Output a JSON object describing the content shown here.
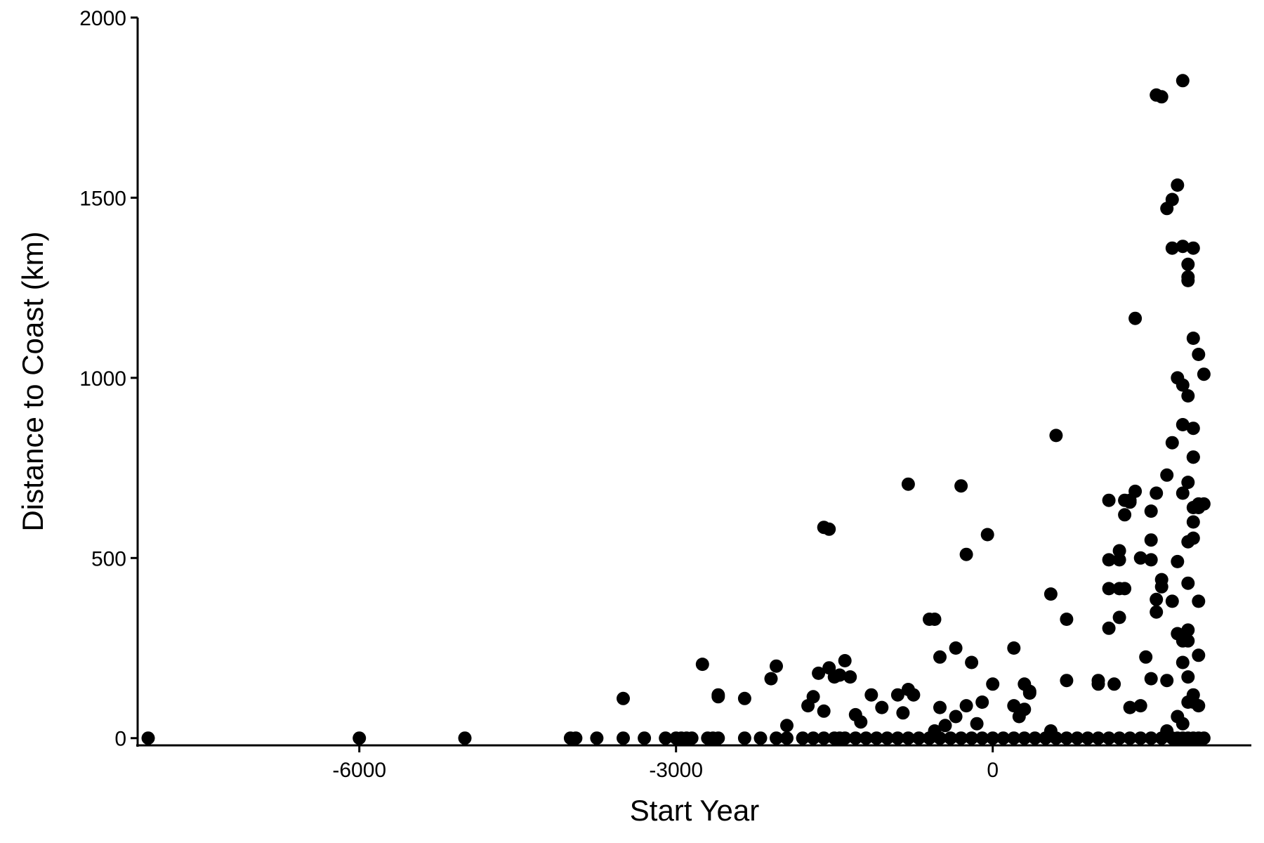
{
  "chart_data": {
    "type": "scatter",
    "title": "",
    "xlabel": "Start Year",
    "ylabel": "Distance to Coast (km)",
    "xlim": [
      -8100,
      2450
    ],
    "ylim": [
      -20,
      2000
    ],
    "x_ticks": [
      -6000,
      -3000,
      0
    ],
    "x_tick_labels": [
      "-6000",
      "-3000",
      "0"
    ],
    "y_ticks": [
      0,
      500,
      1000,
      1500,
      2000
    ],
    "y_tick_labels": [
      "0",
      "500",
      "1000",
      "1500",
      "2000"
    ],
    "grid": false,
    "legend": "none",
    "colors": {
      "point": "#000000",
      "axis": "#000000",
      "background": "#ffffff"
    },
    "series": [
      {
        "name": "points",
        "x": [
          -8000,
          -6000,
          -5000,
          -4000,
          -3950,
          -3750,
          -3500,
          -3300,
          -3100,
          -3000,
          -2950,
          -2900,
          -2850,
          -2700,
          -2650,
          -2600,
          -2350,
          -2200,
          -2050,
          -1950,
          -1800,
          -1700,
          -1600,
          -1500,
          -1450,
          -1400,
          -1300,
          -1200,
          -1100,
          -1000,
          -900,
          -800,
          -700,
          -600,
          -500,
          -400,
          -300,
          -200,
          -100,
          0,
          100,
          200,
          300,
          400,
          500,
          600,
          700,
          800,
          900,
          1000,
          1100,
          1200,
          1300,
          1400,
          1500,
          1600,
          1700,
          1750,
          1800,
          1850,
          1900,
          1950,
          2000,
          -2750,
          -3500,
          -2600,
          -2600,
          -2350,
          -2100,
          -2050,
          -1950,
          -1750,
          -1700,
          -1650,
          -1600,
          -1550,
          -1500,
          -1450,
          -1400,
          -1350,
          -1300,
          -1250,
          -1150,
          -1050,
          -900,
          -850,
          -800,
          -750,
          -550,
          -500,
          -450,
          -350,
          -250,
          -200,
          -100,
          0,
          200,
          250,
          300,
          350,
          550,
          700,
          1000,
          1150,
          1300,
          1400,
          1500,
          1650,
          1750,
          1800,
          1850,
          1900,
          1950,
          -1600,
          -1550,
          -800,
          -600,
          -550,
          -500,
          -300,
          -250,
          -50,
          -350,
          -150,
          200,
          300,
          350,
          550,
          600,
          700,
          1100,
          1200,
          1250,
          1500,
          1000,
          1100,
          1100,
          1200,
          1200,
          1250,
          1300,
          1350,
          1400,
          1450,
          1500,
          1550,
          1600,
          1700,
          1750,
          1800,
          1850,
          1900,
          1100,
          1200,
          1250,
          1300,
          1500,
          1550,
          1600,
          1650,
          1700,
          1750,
          1800,
          1850,
          1900,
          1350,
          1700,
          1800,
          1850,
          1850,
          1900,
          1550,
          1650,
          1700,
          1750,
          1800,
          1850,
          1900,
          1950,
          1600,
          1800,
          1850,
          1900,
          1900,
          1950,
          2000,
          1550,
          1650,
          1750,
          1850,
          1800,
          1850,
          1900,
          1950,
          1800,
          1850,
          1900,
          1950,
          1900,
          2000,
          1850,
          1950
        ],
        "y": [
          0,
          0,
          0,
          0,
          0,
          0,
          0,
          0,
          0,
          0,
          0,
          0,
          0,
          0,
          0,
          0,
          0,
          0,
          0,
          0,
          0,
          0,
          0,
          0,
          0,
          0,
          0,
          0,
          0,
          0,
          0,
          0,
          0,
          0,
          0,
          0,
          0,
          0,
          0,
          0,
          0,
          0,
          0,
          0,
          0,
          0,
          0,
          0,
          0,
          0,
          0,
          0,
          0,
          0,
          0,
          0,
          0,
          0,
          0,
          0,
          0,
          0,
          0,
          205,
          110,
          120,
          115,
          110,
          165,
          200,
          35,
          90,
          115,
          180,
          75,
          195,
          170,
          175,
          215,
          170,
          65,
          45,
          120,
          85,
          120,
          70,
          135,
          120,
          20,
          85,
          35,
          250,
          90,
          210,
          100,
          150,
          250,
          60,
          150,
          125,
          20,
          160,
          160,
          150,
          85,
          90,
          165,
          20,
          60,
          40,
          100,
          120,
          90,
          585,
          580,
          705,
          330,
          330,
          225,
          700,
          510,
          565,
          60,
          40,
          90,
          80,
          130,
          400,
          840,
          330,
          660,
          520,
          620,
          495,
          150,
          495,
          305,
          495,
          335,
          415,
          660,
          685,
          500,
          225,
          550,
          385,
          440,
          380,
          290,
          270,
          270,
          100,
          415,
          415,
          660,
          655,
          630,
          680,
          420,
          730,
          820,
          1000,
          870,
          545,
          780,
          1165,
          1360,
          1365,
          1315,
          1270,
          1360,
          1785,
          1470,
          1495,
          1535,
          1825,
          1280,
          1110,
          1065,
          1780,
          980,
          950,
          860,
          780,
          650,
          1010,
          350,
          160,
          490,
          430,
          680,
          710,
          640,
          640,
          210,
          170,
          600,
          380,
          555,
          650,
          300,
          230
        ]
      }
    ]
  }
}
